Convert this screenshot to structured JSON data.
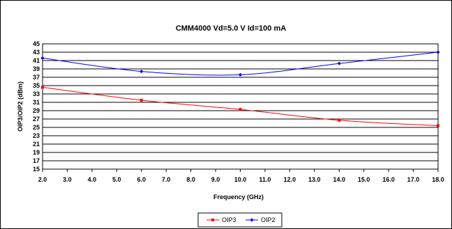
{
  "chart_data": {
    "type": "line",
    "title": "CMM4000 Vd=5.0 V Id=100 mA",
    "xlabel": "Frequency (GHz)",
    "ylabel": "OIP3/OIP2 (dBm)",
    "xlim": [
      2.0,
      18.0
    ],
    "ylim": [
      15,
      45
    ],
    "x_ticks": [
      "2.0",
      "3.0",
      "4.0",
      "5.0",
      "6.0",
      "7.0",
      "8.0",
      "9.0",
      "10.0",
      "11.0",
      "12.0",
      "13.0",
      "14.0",
      "15.0",
      "16.0",
      "17.0",
      "18.0"
    ],
    "y_ticks": [
      15,
      17,
      19,
      21,
      23,
      25,
      27,
      29,
      31,
      33,
      35,
      37,
      39,
      41,
      43,
      45
    ],
    "grid": true,
    "legend": "bottom-center",
    "series": [
      {
        "name": "OIP3",
        "color": "#ff0000",
        "x": [
          2,
          6,
          10,
          14,
          18
        ],
        "y": [
          34.6,
          31.5,
          29.3,
          26.7,
          25.4
        ]
      },
      {
        "name": "OIP2",
        "color": "#0000ff",
        "x": [
          2,
          6,
          10,
          14,
          18
        ],
        "y": [
          41.6,
          38.4,
          37.6,
          40.3,
          43.0
        ]
      }
    ]
  }
}
